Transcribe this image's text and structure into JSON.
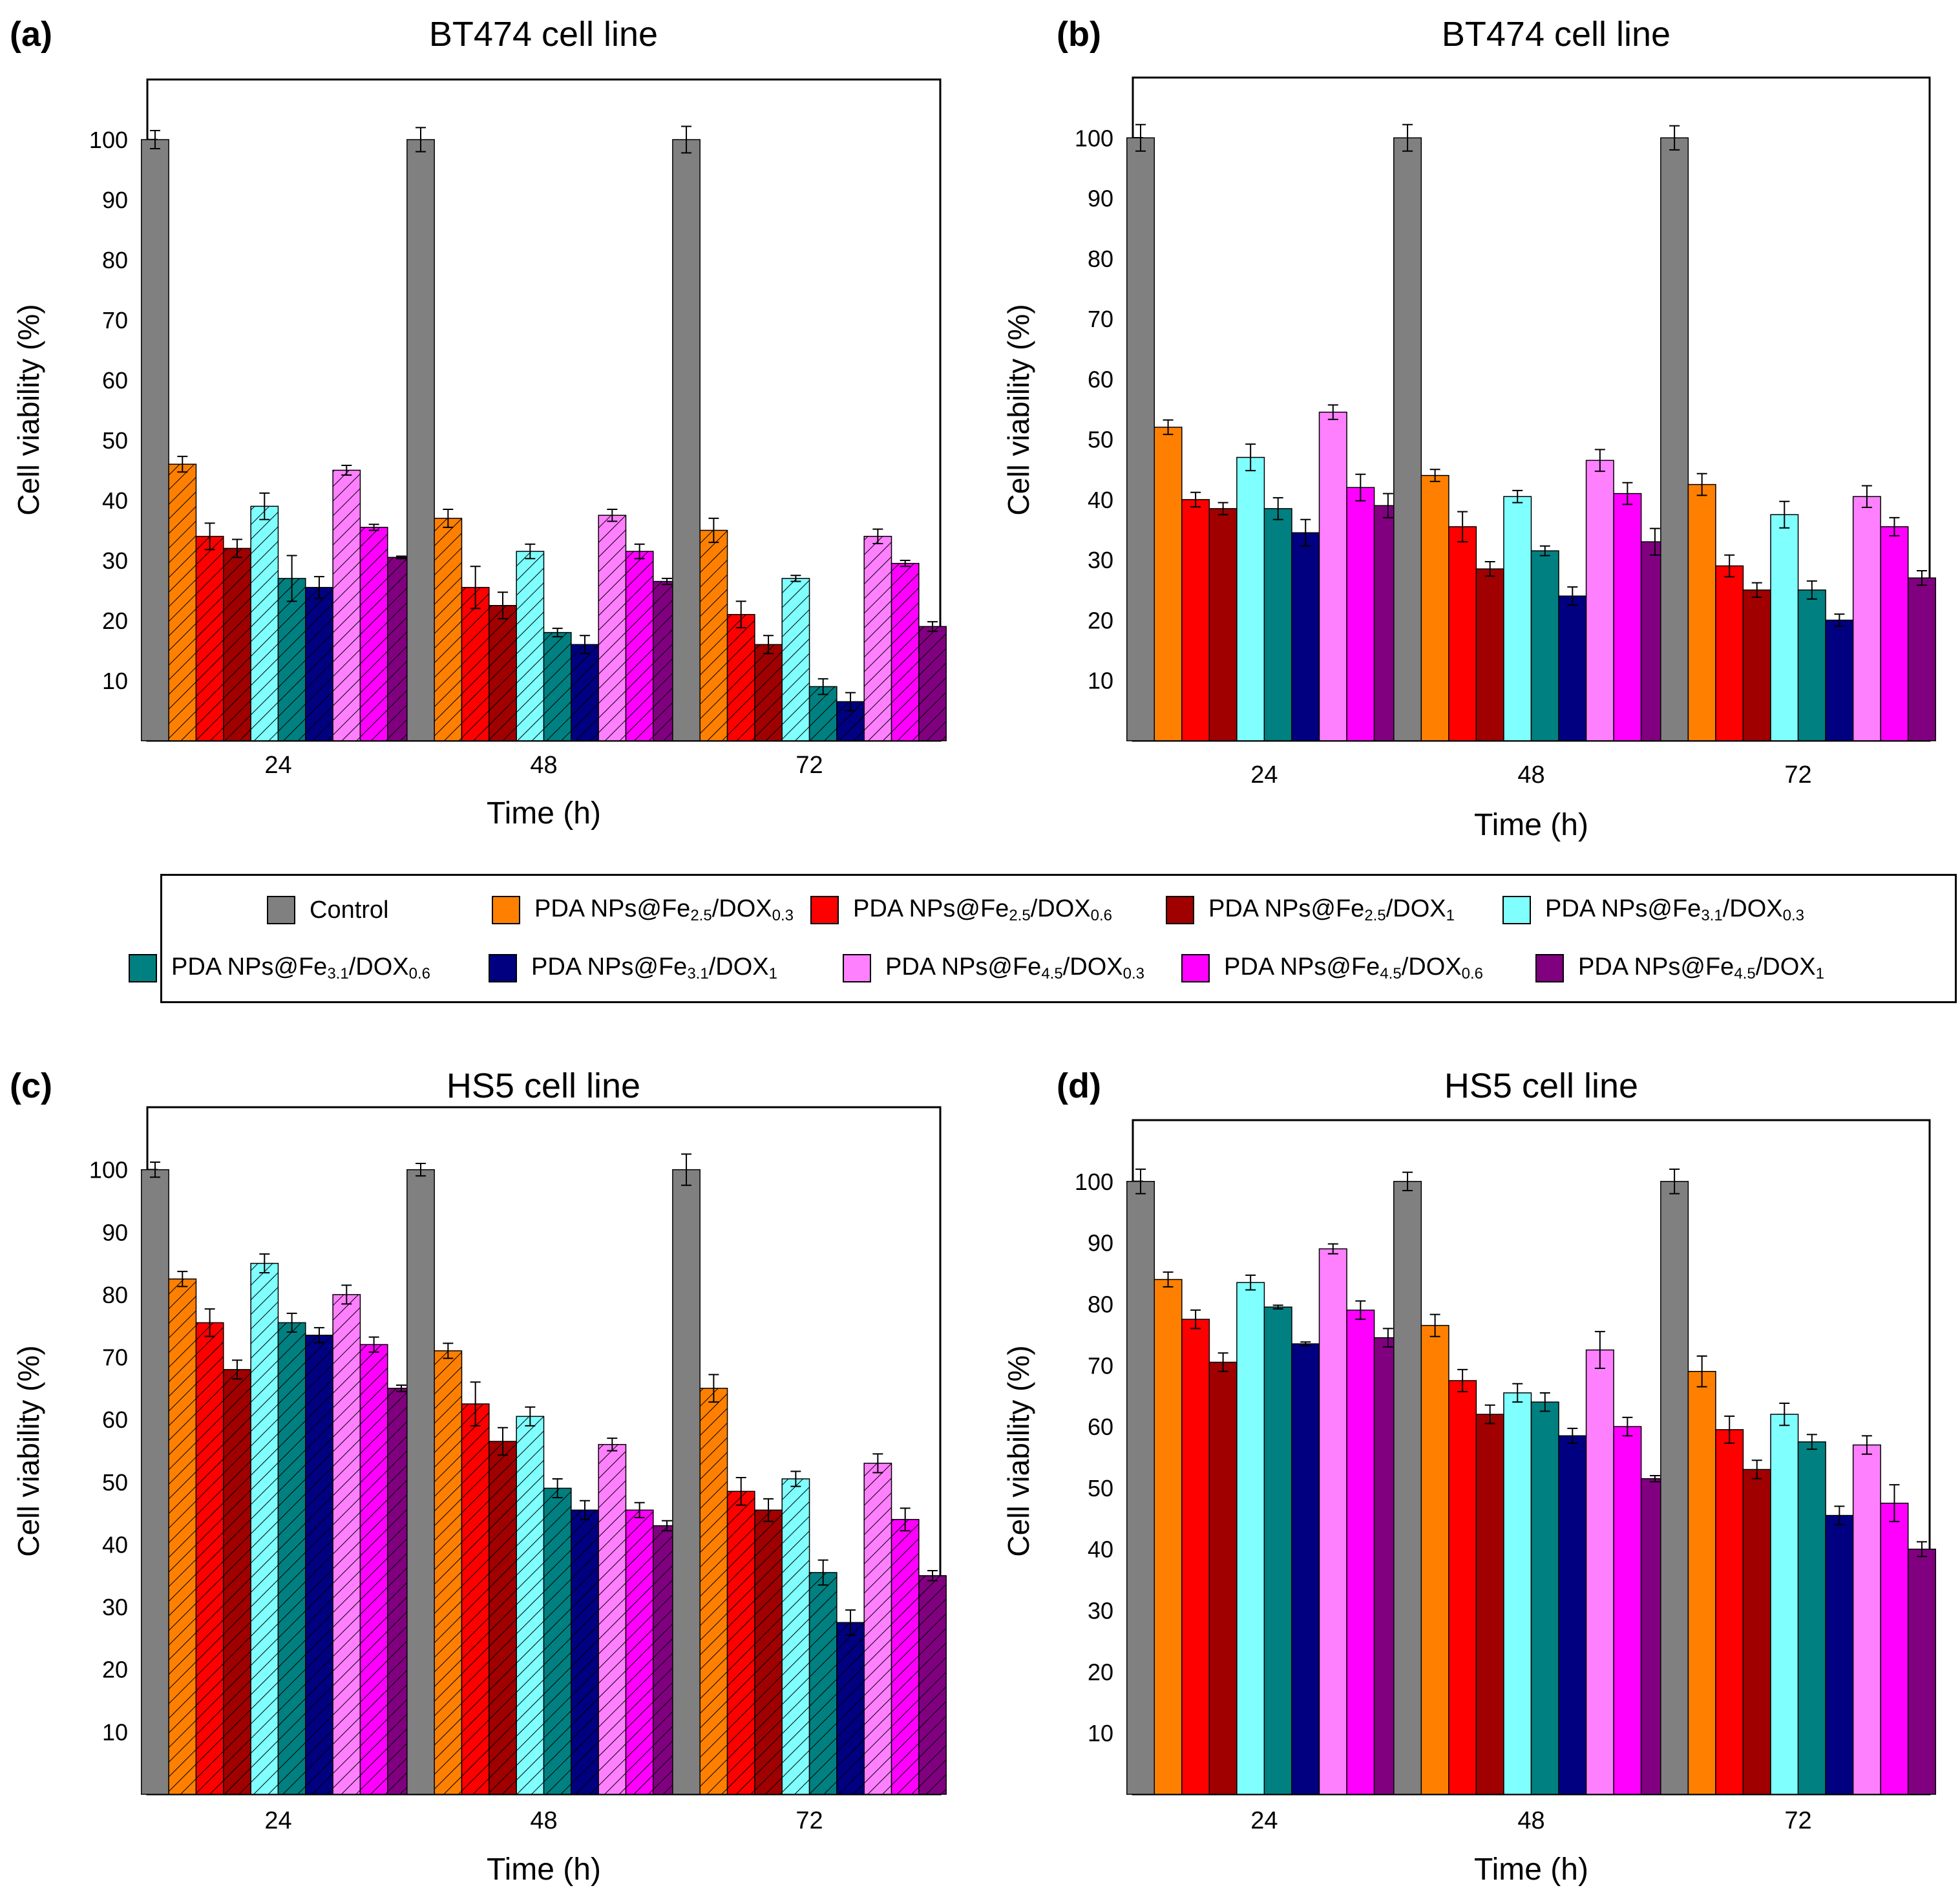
{
  "colors": {
    "control": "#808080",
    "fe25_dox03": "#ff8000",
    "fe25_dox06": "#ff0000",
    "fe25_dox1": "#a00000",
    "fe31_dox03": "#80ffff",
    "fe31_dox06": "#008080",
    "fe31_dox1": "#000080",
    "fe45_dox03": "#ff80ff",
    "fe45_dox06": "#ff00ff",
    "fe45_dox1": "#800080"
  },
  "legend": {
    "items": [
      {
        "key": "control",
        "label": "Control",
        "base": "Control",
        "sub1": "",
        "mid": "",
        "sub2": ""
      },
      {
        "key": "fe25_dox03",
        "label": "PDA NPs@Fe2.5/DOX0.3",
        "base": "PDA NPs@Fe",
        "sub1": "2.5",
        "mid": "/DOX",
        "sub2": "0.3"
      },
      {
        "key": "fe25_dox06",
        "label": "PDA NPs@Fe2.5/DOX0.6",
        "base": "PDA NPs@Fe",
        "sub1": "2.5",
        "mid": "/DOX",
        "sub2": "0.6"
      },
      {
        "key": "fe25_dox1",
        "label": "PDA NPs@Fe2.5/DOX1",
        "base": "PDA NPs@Fe",
        "sub1": "2.5",
        "mid": "/DOX",
        "sub2": "1"
      },
      {
        "key": "fe31_dox03",
        "label": "PDA NPs@Fe3.1/DOX0.3",
        "base": "PDA NPs@Fe",
        "sub1": "3.1",
        "mid": "/DOX",
        "sub2": "0.3"
      },
      {
        "key": "fe31_dox06",
        "label": "PDA NPs@Fe3.1/DOX0.6",
        "base": "PDA NPs@Fe",
        "sub1": "3.1",
        "mid": "/DOX",
        "sub2": "0.6"
      },
      {
        "key": "fe31_dox1",
        "label": "PDA NPs@Fe3.1/DOX1",
        "base": "PDA NPs@Fe",
        "sub1": "3.1",
        "mid": "/DOX",
        "sub2": "1"
      },
      {
        "key": "fe45_dox03",
        "label": "PDA NPs@Fe4.5/DOX0.3",
        "base": "PDA NPs@Fe",
        "sub1": "4.5",
        "mid": "/DOX",
        "sub2": "0.3"
      },
      {
        "key": "fe45_dox06",
        "label": "PDA NPs@Fe4.5/DOX0.6",
        "base": "PDA NPs@Fe",
        "sub1": "4.5",
        "mid": "/DOX",
        "sub2": "0.6"
      },
      {
        "key": "fe45_dox1",
        "label": "PDA NPs@Fe4.5/DOX1",
        "base": "PDA NPs@Fe",
        "sub1": "4.5",
        "mid": "/DOX",
        "sub2": "1"
      }
    ]
  },
  "chart_data": [
    {
      "panel": "(a)",
      "title": "BT474 cell line",
      "type": "bar",
      "hatched": true,
      "xlabel": "Time (h)",
      "ylabel": "Cell viability (%)",
      "ylim": [
        0,
        110
      ],
      "yticks": [
        10,
        20,
        30,
        40,
        50,
        60,
        70,
        80,
        90,
        100
      ],
      "categories": [
        "24",
        "48",
        "72"
      ],
      "series": [
        {
          "key": "control",
          "name": "Control",
          "values": [
            100,
            100,
            100
          ],
          "errors": [
            1.5,
            2,
            2.2
          ]
        },
        {
          "key": "fe25_dox03",
          "name": "PDA NPs@Fe2.5/DOX0.3",
          "values": [
            46,
            37,
            35
          ],
          "errors": [
            1.3,
            1.5,
            2
          ]
        },
        {
          "key": "fe25_dox06",
          "name": "PDA NPs@Fe2.5/DOX0.6",
          "values": [
            34,
            25.5,
            21
          ],
          "errors": [
            2.2,
            3.5,
            2.2
          ]
        },
        {
          "key": "fe25_dox1",
          "name": "PDA NPs@Fe2.5/DOX1",
          "values": [
            32,
            22.5,
            16
          ],
          "errors": [
            1.5,
            2.2,
            1.5
          ]
        },
        {
          "key": "fe31_dox03",
          "name": "PDA NPs@Fe3.1/DOX0.3",
          "values": [
            39,
            31.5,
            27
          ],
          "errors": [
            2.2,
            1.2,
            0.5
          ]
        },
        {
          "key": "fe31_dox06",
          "name": "PDA NPs@Fe3.1/DOX0.6",
          "values": [
            27,
            18,
            9
          ],
          "errors": [
            3.8,
            0.7,
            1.3
          ]
        },
        {
          "key": "fe31_dox1",
          "name": "PDA NPs@Fe3.1/DOX1",
          "values": [
            25.5,
            16,
            6.5
          ],
          "errors": [
            1.8,
            1.5,
            1.5
          ]
        },
        {
          "key": "fe45_dox03",
          "name": "PDA NPs@Fe4.5/DOX0.3",
          "values": [
            45,
            37.5,
            34
          ],
          "errors": [
            0.8,
            1,
            1.2
          ]
        },
        {
          "key": "fe45_dox06",
          "name": "PDA NPs@Fe4.5/DOX0.6",
          "values": [
            35.5,
            31.5,
            29.5
          ],
          "errors": [
            0.5,
            1.2,
            0.5
          ]
        },
        {
          "key": "fe45_dox1",
          "name": "PDA NPs@Fe4.5/DOX1",
          "values": [
            30.5,
            26.5,
            19
          ],
          "errors": [
            0.2,
            0.5,
            0.8
          ]
        }
      ]
    },
    {
      "panel": "(b)",
      "title": "BT474 cell line",
      "type": "bar",
      "hatched": false,
      "xlabel": "Time (h)",
      "ylabel": "Cell viability (%)",
      "ylim": [
        0,
        110
      ],
      "yticks": [
        10,
        20,
        30,
        40,
        50,
        60,
        70,
        80,
        90,
        100
      ],
      "categories": [
        "24",
        "48",
        "72"
      ],
      "series": [
        {
          "key": "control",
          "name": "Control",
          "values": [
            100,
            100,
            100
          ],
          "errors": [
            2.2,
            2.2,
            2
          ]
        },
        {
          "key": "fe25_dox03",
          "name": "PDA NPs@Fe2.5/DOX0.3",
          "values": [
            52,
            44,
            42.5
          ],
          "errors": [
            1.2,
            1,
            1.8
          ]
        },
        {
          "key": "fe25_dox06",
          "name": "PDA NPs@Fe2.5/DOX0.6",
          "values": [
            40,
            35.5,
            29
          ],
          "errors": [
            1.2,
            2.5,
            1.8
          ]
        },
        {
          "key": "fe25_dox1",
          "name": "PDA NPs@Fe2.5/DOX1",
          "values": [
            38.5,
            28.5,
            25
          ],
          "errors": [
            1,
            1.2,
            1.2
          ]
        },
        {
          "key": "fe31_dox03",
          "name": "PDA NPs@Fe3.1/DOX0.3",
          "values": [
            47,
            40.5,
            37.5
          ],
          "errors": [
            2.2,
            1,
            2.2
          ]
        },
        {
          "key": "fe31_dox06",
          "name": "PDA NPs@Fe3.1/DOX0.6",
          "values": [
            38.5,
            31.5,
            25
          ],
          "errors": [
            1.8,
            0.8,
            1.5
          ]
        },
        {
          "key": "fe31_dox1",
          "name": "PDA NPs@Fe3.1/DOX1",
          "values": [
            34.5,
            24,
            20
          ],
          "errors": [
            2.2,
            1.5,
            1
          ]
        },
        {
          "key": "fe45_dox03",
          "name": "PDA NPs@Fe4.5/DOX0.3",
          "values": [
            54.5,
            46.5,
            40.5
          ],
          "errors": [
            1.2,
            1.8,
            1.8
          ]
        },
        {
          "key": "fe45_dox06",
          "name": "PDA NPs@Fe4.5/DOX0.6",
          "values": [
            42,
            41,
            35.5
          ],
          "errors": [
            2.2,
            1.8,
            1.5
          ]
        },
        {
          "key": "fe45_dox1",
          "name": "PDA NPs@Fe4.5/DOX1",
          "values": [
            39,
            33,
            27
          ],
          "errors": [
            2,
            2.2,
            1.2
          ]
        }
      ]
    },
    {
      "panel": "(c)",
      "title": "HS5 cell line",
      "type": "bar",
      "hatched": true,
      "xlabel": "Time (h)",
      "ylabel": "Cell viability (%)",
      "ylim": [
        0,
        110
      ],
      "yticks": [
        10,
        20,
        30,
        40,
        50,
        60,
        70,
        80,
        90,
        100
      ],
      "categories": [
        "24",
        "48",
        "72"
      ],
      "series": [
        {
          "key": "control",
          "name": "Control",
          "values": [
            100,
            100,
            100
          ],
          "errors": [
            1.2,
            1,
            2.5
          ]
        },
        {
          "key": "fe25_dox03",
          "name": "PDA NPs@Fe2.5/DOX0.3",
          "values": [
            82.5,
            71,
            65
          ],
          "errors": [
            1.2,
            1.2,
            2.2
          ]
        },
        {
          "key": "fe25_dox06",
          "name": "PDA NPs@Fe2.5/DOX0.6",
          "values": [
            75.5,
            62.5,
            48.5
          ],
          "errors": [
            2.2,
            3.5,
            2.2
          ]
        },
        {
          "key": "fe25_dox1",
          "name": "PDA NPs@Fe2.5/DOX1",
          "values": [
            68,
            56.5,
            45.5
          ],
          "errors": [
            1.5,
            2.2,
            1.8
          ]
        },
        {
          "key": "fe31_dox03",
          "name": "PDA NPs@Fe3.1/DOX0.3",
          "values": [
            85,
            60.5,
            50.5
          ],
          "errors": [
            1.5,
            1.5,
            1.2
          ]
        },
        {
          "key": "fe31_dox06",
          "name": "PDA NPs@Fe3.1/DOX0.6",
          "values": [
            75.5,
            49,
            35.5
          ],
          "errors": [
            1.5,
            1.5,
            2
          ]
        },
        {
          "key": "fe31_dox1",
          "name": "PDA NPs@Fe3.1/DOX1",
          "values": [
            73.5,
            45.5,
            27.5
          ],
          "errors": [
            1.2,
            1.5,
            2
          ]
        },
        {
          "key": "fe45_dox03",
          "name": "PDA NPs@Fe4.5/DOX0.3",
          "values": [
            80,
            56,
            53
          ],
          "errors": [
            1.5,
            1,
            1.5
          ]
        },
        {
          "key": "fe45_dox06",
          "name": "PDA NPs@Fe4.5/DOX0.6",
          "values": [
            72,
            45.5,
            44
          ],
          "errors": [
            1.2,
            1.2,
            1.8
          ]
        },
        {
          "key": "fe45_dox1",
          "name": "PDA NPs@Fe4.5/DOX1",
          "values": [
            65,
            43,
            35
          ],
          "errors": [
            0.5,
            0.8,
            0.8
          ]
        }
      ]
    },
    {
      "panel": "(d)",
      "title": "HS5 cell line",
      "type": "bar",
      "hatched": false,
      "xlabel": "Time (h)",
      "ylabel": "Cell viability (%)",
      "ylim": [
        0,
        110
      ],
      "yticks": [
        10,
        20,
        30,
        40,
        50,
        60,
        70,
        80,
        90,
        100
      ],
      "categories": [
        "24",
        "48",
        "72"
      ],
      "series": [
        {
          "key": "control",
          "name": "Control",
          "values": [
            100,
            100,
            100
          ],
          "errors": [
            2,
            1.5,
            2
          ]
        },
        {
          "key": "fe25_dox03",
          "name": "PDA NPs@Fe2.5/DOX0.3",
          "values": [
            84,
            76.5,
            69
          ],
          "errors": [
            1.2,
            1.8,
            2.5
          ]
        },
        {
          "key": "fe25_dox06",
          "name": "PDA NPs@Fe2.5/DOX0.6",
          "values": [
            77.5,
            67.5,
            59.5
          ],
          "errors": [
            1.5,
            1.8,
            2.2
          ]
        },
        {
          "key": "fe25_dox1",
          "name": "PDA NPs@Fe2.5/DOX1",
          "values": [
            70.5,
            62,
            53
          ],
          "errors": [
            1.5,
            1.5,
            1.5
          ]
        },
        {
          "key": "fe31_dox03",
          "name": "PDA NPs@Fe3.1/DOX0.3",
          "values": [
            83.5,
            65.5,
            62
          ],
          "errors": [
            1.2,
            1.5,
            1.8
          ]
        },
        {
          "key": "fe31_dox06",
          "name": "PDA NPs@Fe3.1/DOX0.6",
          "values": [
            79.5,
            64,
            57.5
          ],
          "errors": [
            0.3,
            1.5,
            1.2
          ]
        },
        {
          "key": "fe31_dox1",
          "name": "PDA NPs@Fe3.1/DOX1",
          "values": [
            73.5,
            58.5,
            45.5
          ],
          "errors": [
            0.3,
            1.2,
            1.5
          ]
        },
        {
          "key": "fe45_dox03",
          "name": "PDA NPs@Fe4.5/DOX0.3",
          "values": [
            89,
            72.5,
            57
          ],
          "errors": [
            0.8,
            3,
            1.5
          ]
        },
        {
          "key": "fe45_dox06",
          "name": "PDA NPs@Fe4.5/DOX0.6",
          "values": [
            79,
            60,
            47.5
          ],
          "errors": [
            1.5,
            1.5,
            3
          ]
        },
        {
          "key": "fe45_dox1",
          "name": "PDA NPs@Fe4.5/DOX1",
          "values": [
            74.5,
            51.5,
            40
          ],
          "errors": [
            1.5,
            0.5,
            1.2
          ]
        }
      ]
    }
  ]
}
